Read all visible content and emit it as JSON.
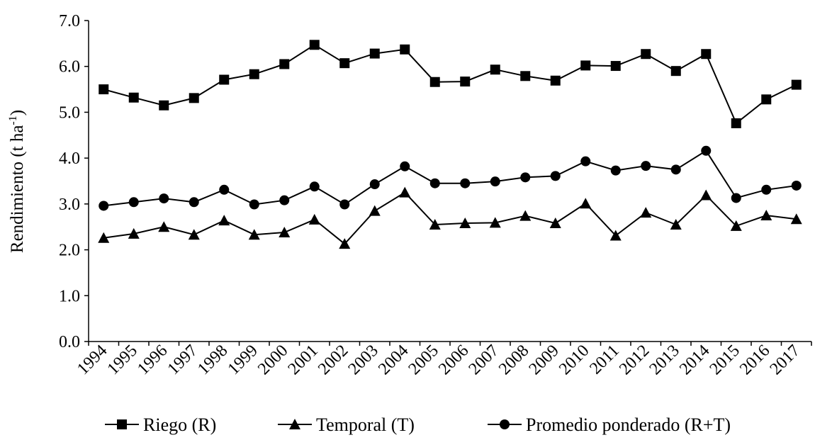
{
  "chart_data": {
    "type": "line",
    "title": "",
    "xlabel": "",
    "ylabel": "Rendimiento (t ha",
    "ylabel_sup": "-1",
    "ylabel_tail": ")",
    "ylim": [
      0,
      7
    ],
    "yticks": [
      "0.0",
      "1.0",
      "2.0",
      "3.0",
      "4.0",
      "5.0",
      "6.0",
      "7.0"
    ],
    "grid": false,
    "legend_position": "bottom",
    "categories": [
      "1994",
      "1995",
      "1996",
      "1997",
      "1998",
      "1999",
      "2000",
      "2001",
      "2002",
      "2003",
      "2004",
      "2005",
      "2006",
      "2007",
      "2008",
      "2009",
      "2010",
      "2011",
      "2012",
      "2013",
      "2014",
      "2015",
      "2016",
      "2017"
    ],
    "series": [
      {
        "name": "Riego (R)",
        "marker": "square",
        "values": [
          5.5,
          5.32,
          5.15,
          5.31,
          5.71,
          5.83,
          6.05,
          6.47,
          6.07,
          6.28,
          6.37,
          5.66,
          5.67,
          5.93,
          5.79,
          5.69,
          6.02,
          6.01,
          6.27,
          5.9,
          6.27,
          4.76,
          5.28,
          5.6
        ]
      },
      {
        "name": "Temporal (T)",
        "marker": "triangle",
        "values": [
          2.26,
          2.35,
          2.5,
          2.33,
          2.64,
          2.33,
          2.38,
          2.66,
          2.13,
          2.85,
          3.25,
          2.55,
          2.58,
          2.59,
          2.74,
          2.58,
          3.01,
          2.31,
          2.81,
          2.55,
          3.19,
          2.52,
          2.75,
          2.67
        ]
      },
      {
        "name": "Promedio ponderado (R+T)",
        "marker": "circle",
        "values": [
          2.96,
          3.04,
          3.12,
          3.04,
          3.31,
          2.99,
          3.08,
          3.38,
          2.99,
          3.43,
          3.82,
          3.45,
          3.45,
          3.49,
          3.58,
          3.61,
          3.93,
          3.73,
          3.83,
          3.75,
          4.16,
          3.13,
          3.31,
          3.4
        ]
      }
    ],
    "colors": {
      "line": "#000000",
      "marker": "#000000",
      "background": "#ffffff"
    }
  }
}
